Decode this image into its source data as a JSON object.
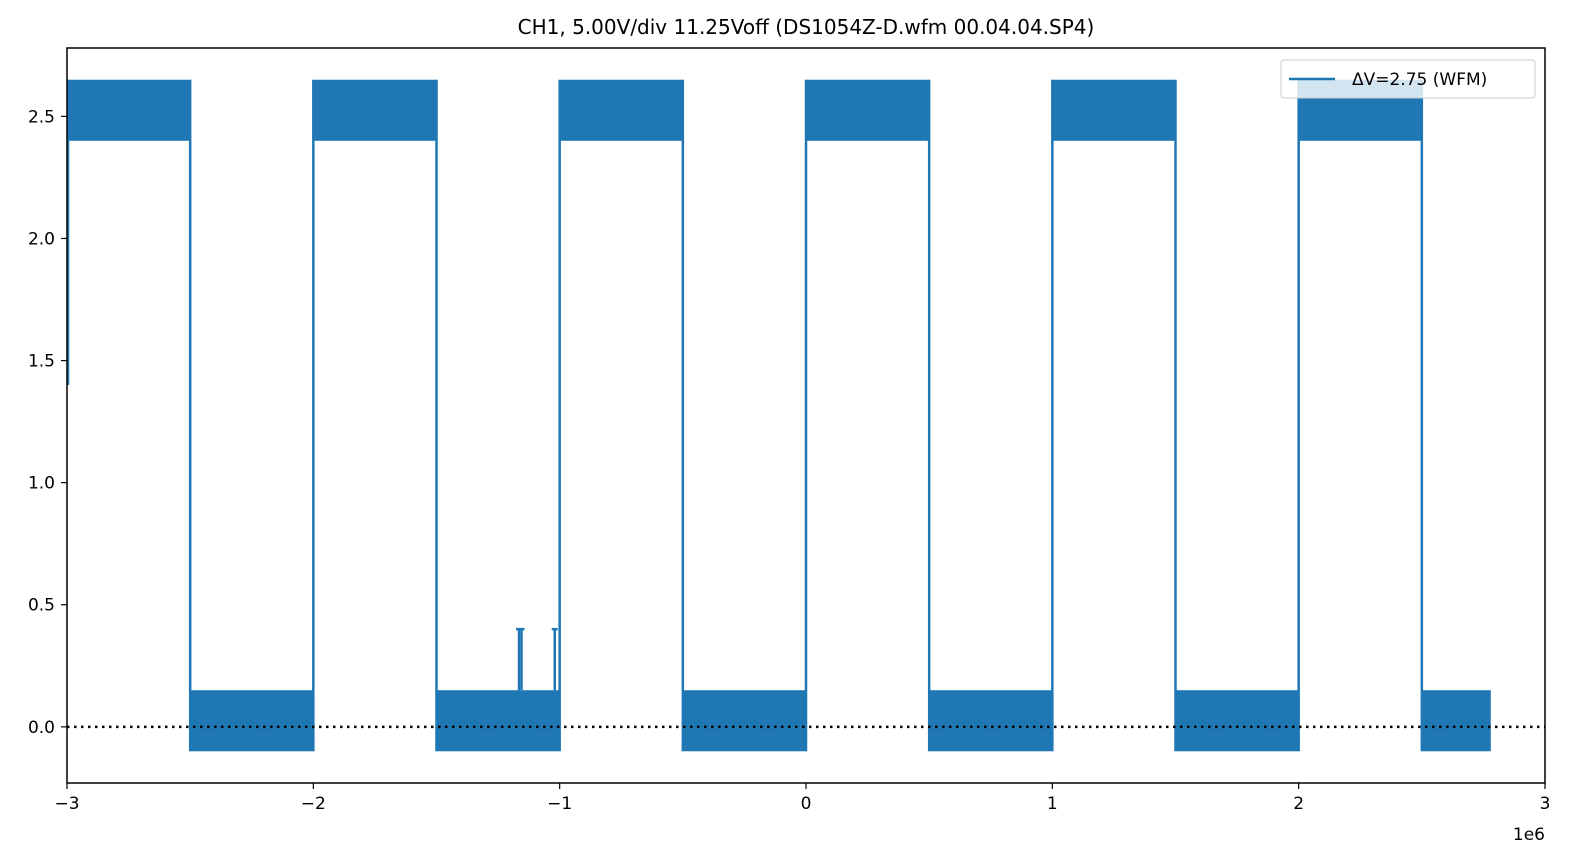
{
  "chart_data": {
    "type": "line",
    "title": "CH1, 5.00V/div 11.25Voff (DS1054Z-D.wfm 00.04.04.SP4)",
    "xlabel": "",
    "ylabel": "",
    "x_offset_label": "1e6",
    "xlim": [
      -3,
      3
    ],
    "ylim": [
      -0.23,
      2.78
    ],
    "x_ticks": [
      -3,
      -2,
      -1,
      0,
      1,
      2,
      3
    ],
    "x_tick_labels": [
      "−3",
      "−2",
      "−1",
      "0",
      "1",
      "2",
      "3"
    ],
    "y_ticks": [
      0.0,
      0.5,
      1.0,
      1.5,
      2.0,
      2.5
    ],
    "y_tick_labels": [
      "0.0",
      "0.5",
      "1.0",
      "1.5",
      "2.0",
      "2.5"
    ],
    "grid": false,
    "legend_position": "top-right",
    "series": [
      {
        "name": "ΔV=2.75 (WFM)",
        "color": "#1f77b4",
        "high_band": [
          2.4,
          2.65
        ],
        "low_band": [
          -0.1,
          0.15
        ],
        "segments": [
          {
            "level": "high",
            "x": [
              -3.0,
              -2.5
            ]
          },
          {
            "level": "low",
            "x": [
              -2.5,
              -2.0
            ]
          },
          {
            "level": "high",
            "x": [
              -2.0,
              -1.5
            ]
          },
          {
            "level": "low",
            "x": [
              -1.5,
              -1.0
            ]
          },
          {
            "level": "high",
            "x": [
              -1.0,
              -0.5
            ]
          },
          {
            "level": "low",
            "x": [
              -0.5,
              0.0
            ]
          },
          {
            "level": "high",
            "x": [
              0.0,
              0.5
            ]
          },
          {
            "level": "low",
            "x": [
              0.5,
              1.0
            ]
          },
          {
            "level": "high",
            "x": [
              1.0,
              1.5
            ]
          },
          {
            "level": "low",
            "x": [
              1.5,
              2.0
            ]
          },
          {
            "level": "high",
            "x": [
              2.0,
              2.5
            ]
          },
          {
            "level": "low",
            "x": [
              2.5,
              2.78
            ]
          }
        ],
        "spikes": [
          {
            "x": -1.165,
            "y": 0.4
          },
          {
            "x": -1.155,
            "y": 0.4
          },
          {
            "x": -1.02,
            "y": 0.4
          }
        ]
      }
    ],
    "reference_line": {
      "y": 0.0,
      "style": "dotted",
      "color": "#000000"
    }
  }
}
